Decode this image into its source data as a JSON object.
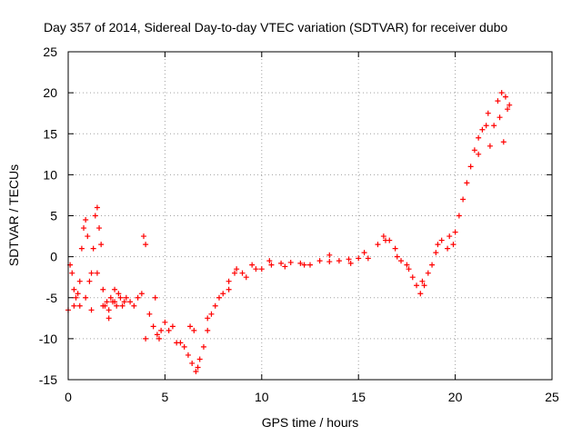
{
  "chart_data": {
    "type": "scatter",
    "title": "Day 357 of 2014, Sidereal Day-to-day VTEC variation (SDTVAR) for receiver dubo",
    "xlabel": "GPS time / hours",
    "ylabel": "SDTVAR / TECUs",
    "xlim": [
      0,
      25
    ],
    "ylim": [
      -15,
      25
    ],
    "xticks": [
      "0",
      "5",
      "10",
      "15",
      "20",
      "25"
    ],
    "yticks": [
      "-15",
      "-10",
      "-5",
      "0",
      "5",
      "10",
      "15",
      "20",
      "25"
    ],
    "grid": true,
    "marker": "+",
    "color": "#ff0000",
    "series": [
      {
        "name": "SDTVAR",
        "x": [
          0.0,
          0.1,
          0.2,
          0.3,
          0.4,
          0.5,
          0.6,
          0.7,
          0.8,
          0.9,
          1.0,
          1.1,
          1.2,
          1.3,
          1.4,
          1.5,
          1.6,
          1.7,
          1.8,
          1.9,
          2.0,
          2.1,
          2.2,
          2.3,
          2.4,
          2.5,
          2.6,
          2.7,
          2.8,
          2.9,
          3.0,
          3.2,
          3.4,
          3.6,
          3.8,
          4.0,
          4.2,
          4.4,
          4.6,
          4.8,
          5.0,
          5.2,
          5.4,
          5.6,
          5.8,
          6.0,
          6.2,
          6.4,
          6.6,
          6.8,
          7.0,
          7.2,
          7.4,
          7.6,
          7.8,
          8.0,
          8.3,
          8.6,
          9.0,
          9.5,
          10.0,
          10.5,
          11.0,
          11.5,
          12.0,
          12.5,
          13.0,
          13.5,
          14.0,
          14.5,
          15.0,
          15.5,
          16.0,
          16.3,
          16.6,
          16.9,
          17.2,
          17.5,
          17.8,
          18.0,
          18.2,
          18.4,
          18.6,
          18.8,
          19.0,
          19.3,
          19.6,
          19.9,
          20.0,
          20.2,
          20.4,
          20.6,
          20.8,
          21.0,
          21.2,
          21.4,
          21.6,
          21.8,
          22.0,
          22.2,
          22.4,
          22.6,
          22.8,
          0.3,
          0.6,
          0.9,
          1.2,
          1.5,
          1.8,
          2.1,
          2.4,
          3.9,
          4.0,
          4.5,
          4.7,
          6.3,
          6.5,
          6.7,
          7.2,
          8.3,
          8.7,
          9.2,
          9.7,
          10.4,
          11.2,
          12.2,
          13.5,
          14.6,
          15.3,
          16.4,
          17.0,
          17.6,
          18.3,
          19.1,
          19.7,
          21.2,
          21.7,
          22.3,
          22.5,
          22.7
        ],
        "y": [
          -6.5,
          -1.0,
          -2.0,
          -4.0,
          -5.0,
          -4.5,
          -6.0,
          1.0,
          3.5,
          4.5,
          2.5,
          -3.0,
          -2.0,
          1.0,
          5.0,
          6.0,
          3.5,
          1.5,
          -4.0,
          -6.0,
          -5.5,
          -6.5,
          -5.0,
          -5.5,
          -5.5,
          -6.0,
          -4.5,
          -5.0,
          -6.0,
          -5.5,
          -5.0,
          -5.5,
          -6.0,
          -5.0,
          -4.5,
          -10.0,
          -7.0,
          -8.5,
          -9.5,
          -9.0,
          -8.0,
          -9.0,
          -8.5,
          -10.5,
          -10.5,
          -11.0,
          -12.0,
          -13.0,
          -14.0,
          -12.5,
          -11.0,
          -9.0,
          -7.0,
          -6.0,
          -5.0,
          -4.5,
          -3.0,
          -2.0,
          -2.0,
          -1.0,
          -1.5,
          -1.0,
          -0.8,
          -0.7,
          -0.8,
          -1.0,
          -0.5,
          -0.6,
          -0.5,
          -0.3,
          -0.2,
          -0.2,
          1.5,
          2.5,
          2.0,
          1.0,
          -0.5,
          -1.0,
          -2.5,
          -3.5,
          -4.5,
          -3.5,
          -2.0,
          -1.0,
          0.5,
          2.0,
          1.0,
          1.5,
          3.0,
          5.0,
          7.0,
          9.0,
          11.0,
          13.0,
          14.5,
          15.5,
          16.0,
          13.5,
          16.0,
          19.0,
          20.0,
          19.5,
          18.5,
          -6.0,
          -3.0,
          -5.0,
          -6.5,
          -2.0,
          -6.0,
          -7.5,
          -4.0,
          2.5,
          1.5,
          -5.0,
          -10.0,
          -8.5,
          -9.0,
          -13.5,
          -7.5,
          -4.0,
          -1.5,
          -2.5,
          -1.5,
          -0.5,
          -1.2,
          -1.0,
          0.2,
          -0.8,
          0.5,
          2.0,
          0.0,
          -1.5,
          -3.0,
          1.5,
          2.5,
          12.5,
          17.5,
          17.0,
          14.0,
          18.0
        ]
      }
    ]
  }
}
